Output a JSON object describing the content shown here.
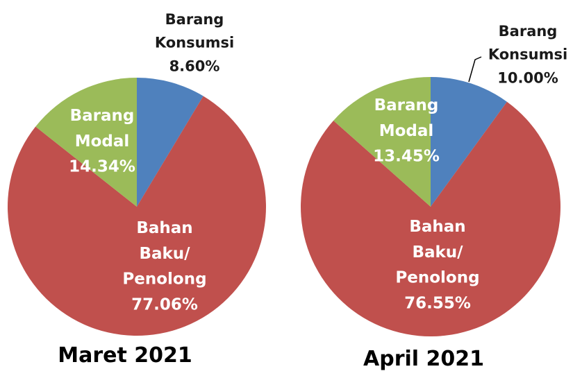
{
  "chart_data": [
    {
      "type": "pie",
      "title": "Maret 2021",
      "categories": [
        "Barang Konsumsi",
        "Bahan Baku/ Penolong",
        "Barang Modal"
      ],
      "values": [
        8.6,
        77.06,
        14.34
      ],
      "value_labels": [
        "8.60%",
        "77.06%",
        "14.34%"
      ],
      "colors": [
        "#4f81bd",
        "#c0504d",
        "#9bbb59"
      ]
    },
    {
      "type": "pie",
      "title": "April 2021",
      "categories": [
        "Barang Konsumsi",
        "Bahan Baku/ Penolong",
        "Barang Modal"
      ],
      "values": [
        10.0,
        76.55,
        13.45
      ],
      "value_labels": [
        "10.00%",
        "76.55%",
        "13.45%"
      ],
      "colors": [
        "#4f81bd",
        "#c0504d",
        "#9bbb59"
      ]
    }
  ]
}
